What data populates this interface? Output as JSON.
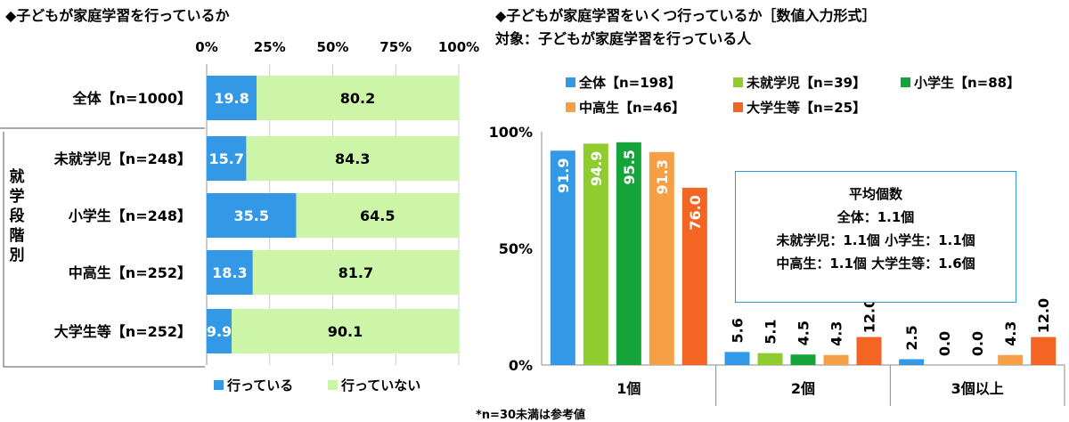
{
  "left": {
    "title": "◆子どもが家庭学習を行っているか",
    "ticks": [
      "0%",
      "25%",
      "50%",
      "75%",
      "100%"
    ],
    "group_label": "就学段階別",
    "legend": [
      {
        "label": "行っている",
        "color": "#3399e6"
      },
      {
        "label": "行っていない",
        "color": "#ccf5a8"
      }
    ]
  },
  "right": {
    "title": "◆子どもが家庭学習をいくつ行っているか［数値入力形式］",
    "subtitle": "対象：子どもが家庭学習を行っている人",
    "y_ticks": [
      "100%",
      "50%",
      "0%"
    ],
    "avg": {
      "title": "平均個数",
      "line1": "全体：1.1個",
      "line2": "未就学児：1.1個 小学生：1.1個",
      "line3": "中高生：1.1個 大学生等：1.6個"
    },
    "note": "*n=30未満は参考値"
  },
  "chart_data": [
    {
      "type": "bar",
      "orientation": "horizontal",
      "stacked": true,
      "title": "◆子どもが家庭学習を行っているか",
      "categories": [
        "全体【n=1000】",
        "未就学児【n=248】",
        "小学生【n=248】",
        "中高生【n=252】",
        "大学生等【n=252】"
      ],
      "series": [
        {
          "name": "行っている",
          "color": "#3399e6",
          "values": [
            19.8,
            15.7,
            35.5,
            18.3,
            9.9
          ]
        },
        {
          "name": "行っていない",
          "color": "#ccf5a8",
          "values": [
            80.2,
            84.3,
            64.5,
            81.7,
            90.1
          ]
        }
      ],
      "xlim": [
        0,
        100
      ],
      "legend": "bottom"
    },
    {
      "type": "bar",
      "orientation": "vertical",
      "title": "◆子どもが家庭学習をいくつ行っているか［数値入力形式］",
      "subtitle": "対象：子どもが家庭学習を行っている人",
      "categories": [
        "1個",
        "2個",
        "3個以上"
      ],
      "series": [
        {
          "name": "全体【n=198】",
          "color": "#3399e6",
          "values": [
            91.9,
            5.6,
            2.5
          ]
        },
        {
          "name": "未就学児【n=39】",
          "color": "#8fcc2e",
          "values": [
            94.9,
            5.1,
            0.0
          ]
        },
        {
          "name": "小学生【n=88】",
          "color": "#15a33a",
          "values": [
            95.5,
            4.5,
            0.0
          ]
        },
        {
          "name": "中高生【n=46】",
          "color": "#f5a044",
          "values": [
            91.3,
            4.3,
            4.3
          ]
        },
        {
          "name": "大学生等【n=25】",
          "color": "#f26522",
          "values": [
            76.0,
            12.0,
            12.0
          ]
        }
      ],
      "ylim": [
        0,
        100
      ],
      "legend": "top"
    }
  ]
}
